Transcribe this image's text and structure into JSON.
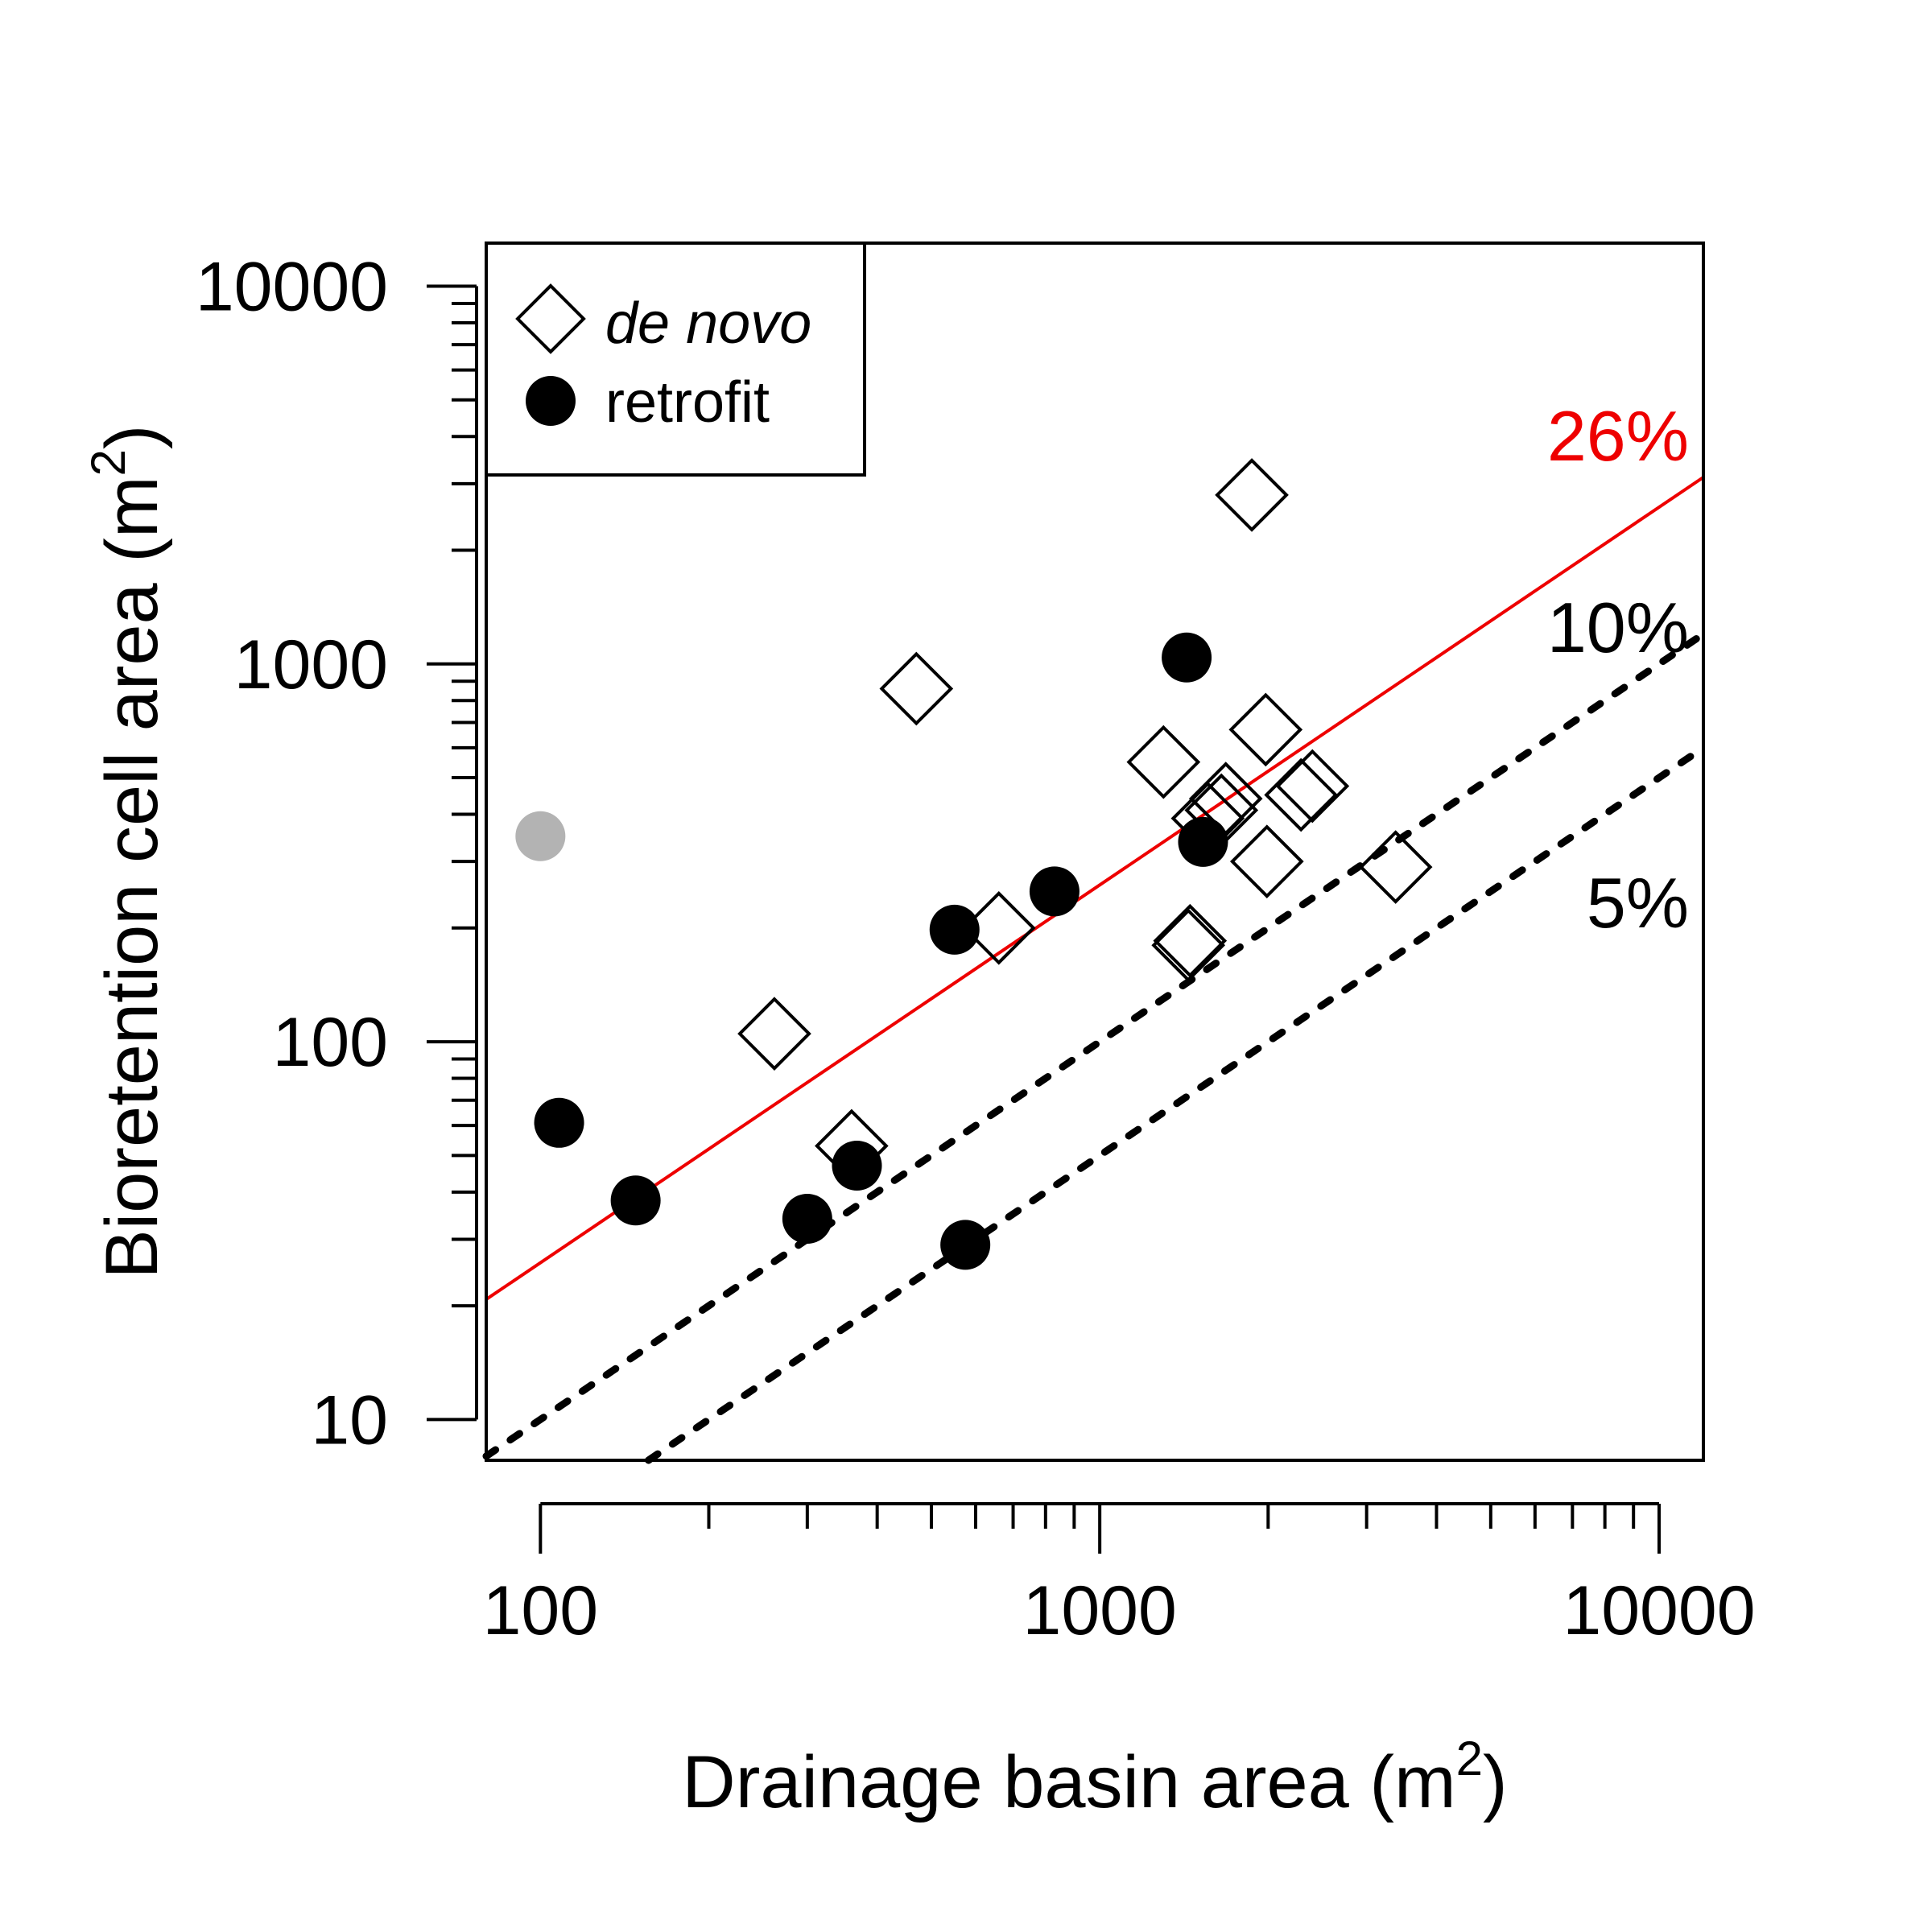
{
  "chart_data": {
    "type": "scatter",
    "xlabel": "Drainage basin area (m",
    "ylabel": "Bioretention cell area (m",
    "label_sup": "2",
    "label_close": ")",
    "xscale": "log",
    "yscale": "log",
    "xlim": [
      80,
      12000
    ],
    "ylim": [
      7.8,
      13000
    ],
    "x_ticks": [
      100,
      1000,
      10000
    ],
    "x_tick_labels": [
      "100",
      "1000",
      "10000"
    ],
    "y_ticks": [
      10,
      100,
      1000,
      10000
    ],
    "y_tick_labels": [
      "10",
      "100",
      "1000",
      "10000"
    ],
    "grid": false,
    "legend_position": "top-left",
    "series": [
      {
        "name": "de novo",
        "marker": "open-diamond",
        "color": "#000000",
        "x": [
          470,
          262,
          1300,
          1560,
          1650,
          1680,
          1870,
          1980,
          1990,
          2290,
          2400,
          3380,
          1440,
          1450,
          360,
          660
        ],
        "y": [
          860,
          105,
          550,
          390,
          410,
          440,
          2800,
          670,
          300,
          450,
          475,
          290,
          180,
          185,
          53,
          200
        ]
      },
      {
        "name": "retrofit",
        "marker": "filled-circle",
        "color": "#000000",
        "x": [
          108,
          148,
          300,
          368,
          550,
          575,
          830,
          1430,
          1530
        ],
        "y": [
          61,
          38,
          34,
          47,
          198,
          29,
          250,
          1040,
          338
        ]
      },
      {
        "name": "",
        "marker": "filled-circle",
        "color": "#b3b3b3",
        "x": [
          100
        ],
        "y": [
          350
        ]
      }
    ],
    "reference_lines": [
      {
        "label": "26%",
        "ratio": 0.26,
        "color": "#ee0000",
        "style": "solid"
      },
      {
        "label": "10%",
        "ratio": 0.1,
        "color": "#000000",
        "style": "dotted"
      },
      {
        "label": "5%",
        "ratio": 0.05,
        "color": "#000000",
        "style": "dotted"
      }
    ]
  }
}
